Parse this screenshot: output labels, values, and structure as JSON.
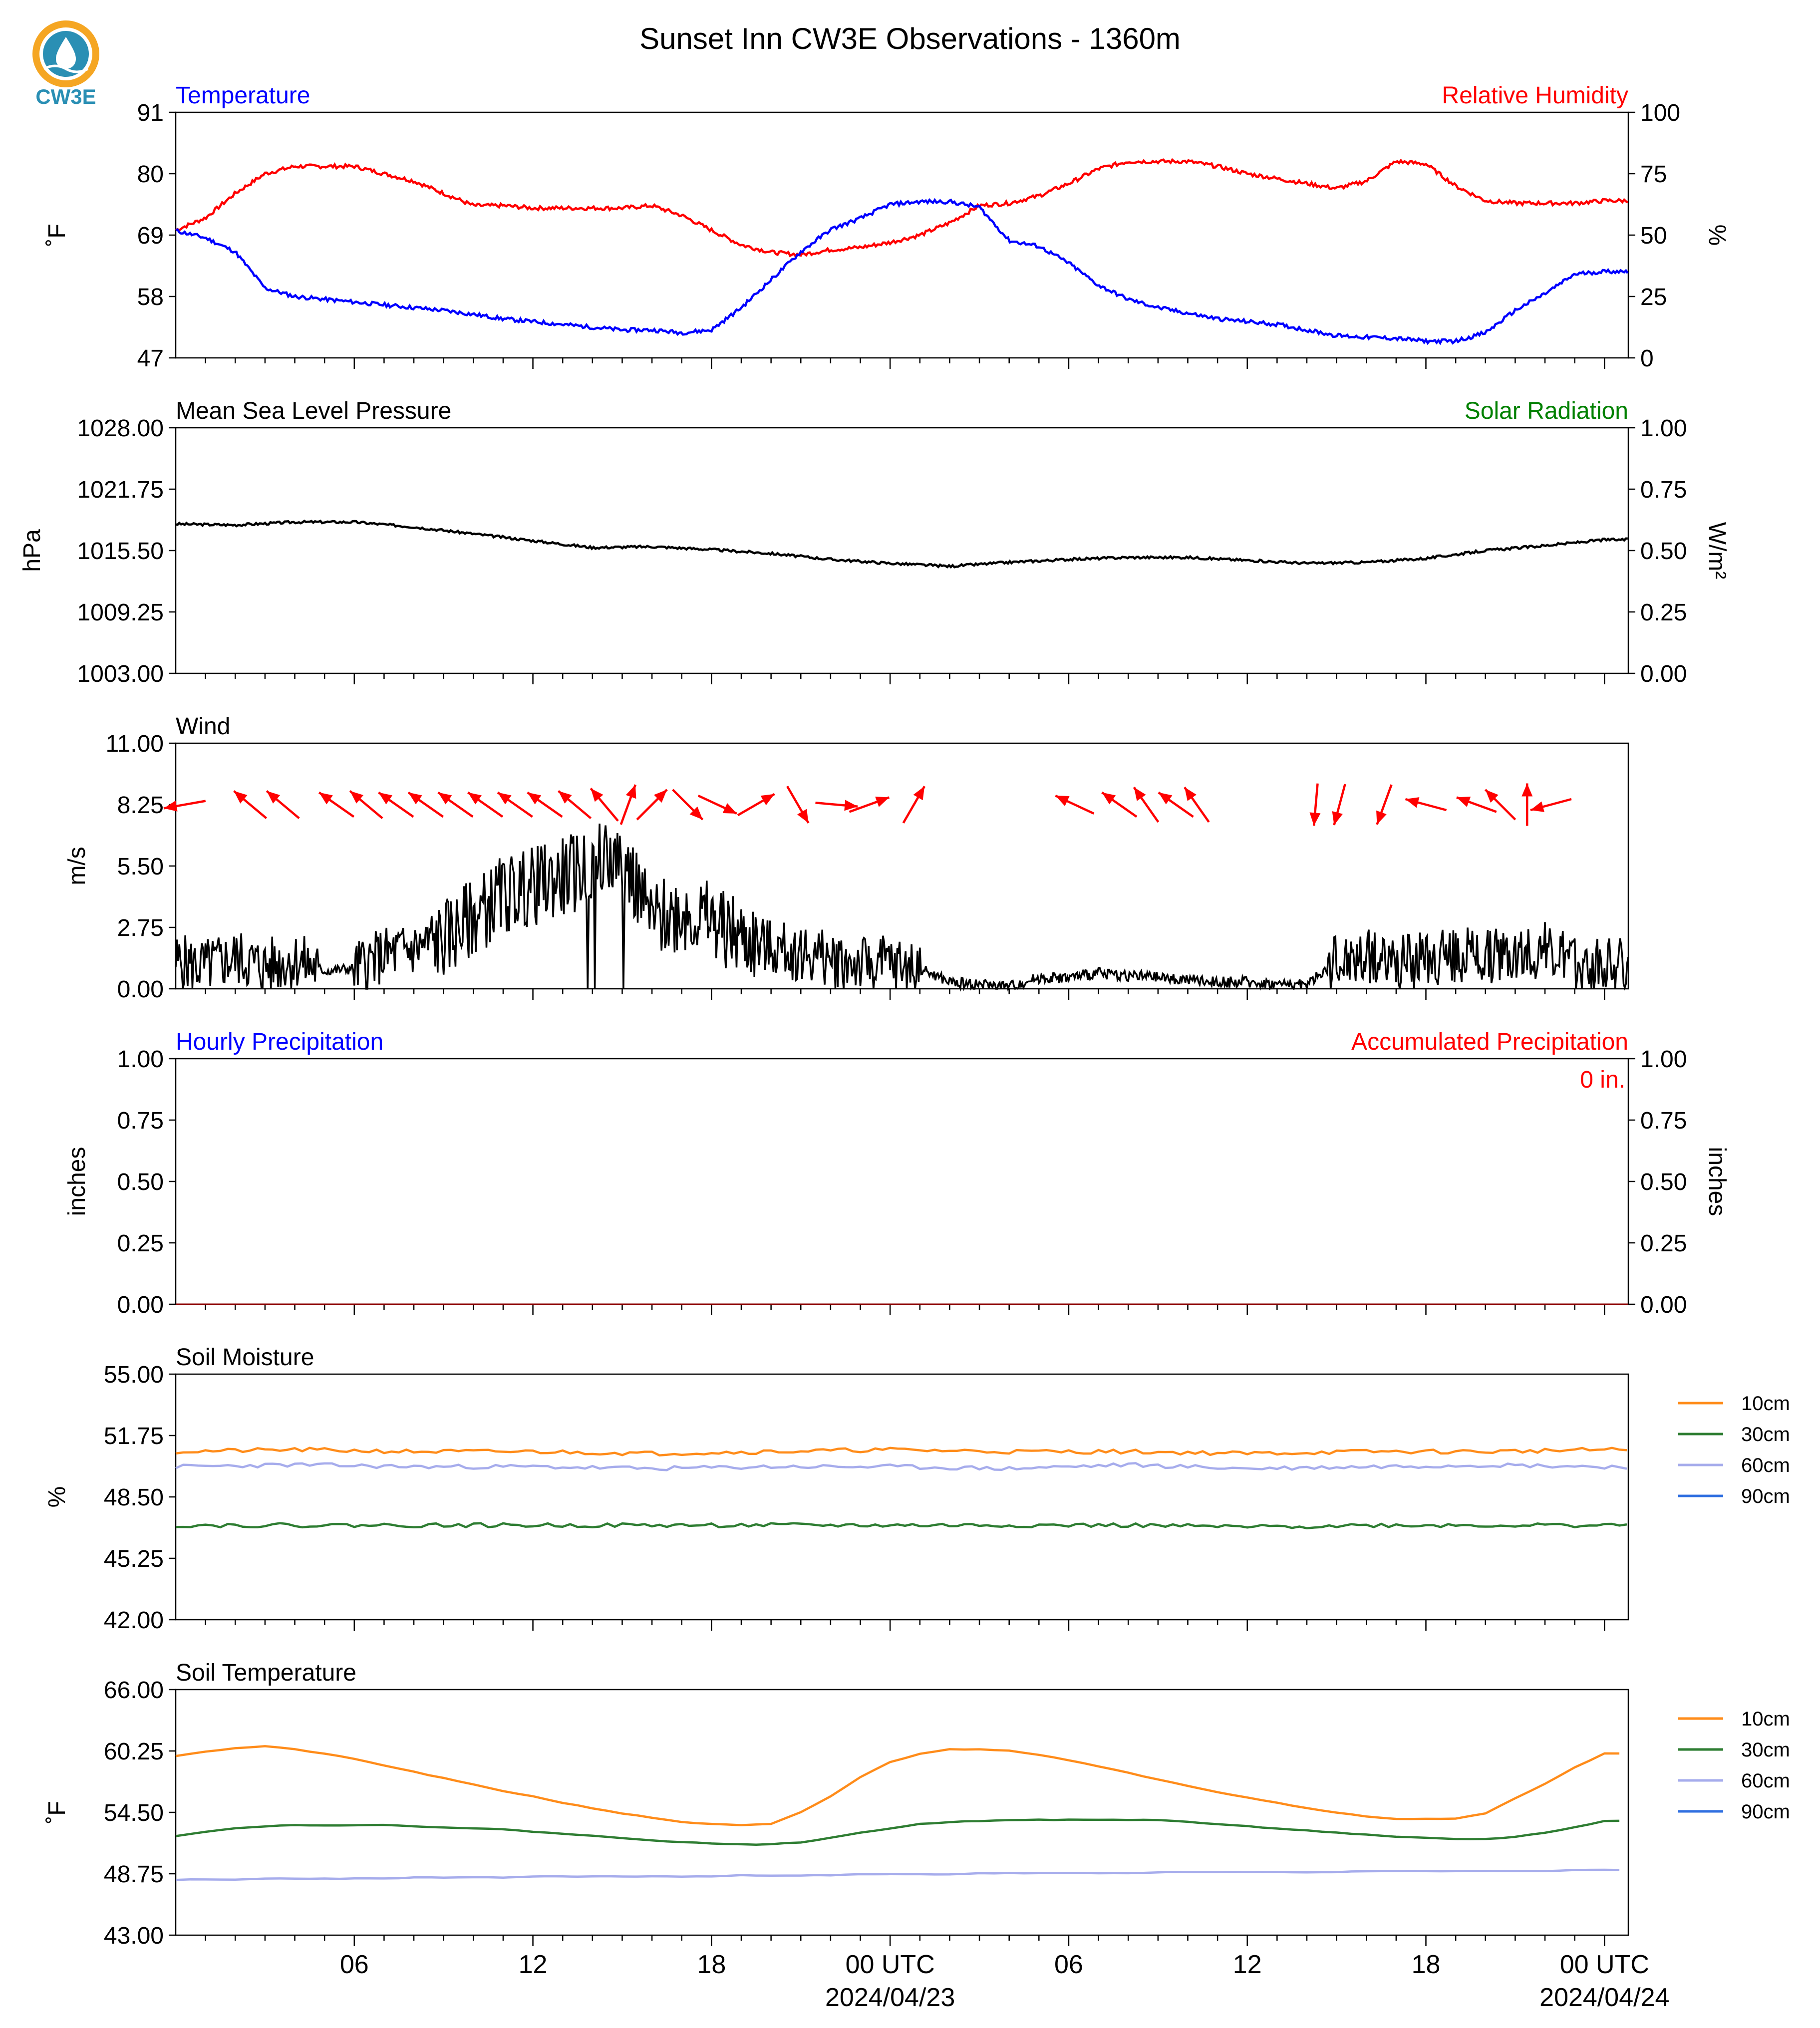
{
  "page": {
    "title": "Sunset Inn CW3E Observations - 1360m",
    "logo_text": "CW3E"
  },
  "colors": {
    "temperature": "#0000ff",
    "humidity": "#ff0000",
    "solar": "#008000",
    "soil_10cm": "#ff8c1a",
    "soil_30cm": "#2e7d32",
    "soil_60cm": "#a6acec",
    "soil_90cm": "#2f6fe0",
    "logo_orange": "#f5a623",
    "logo_teal": "#2a8fb4"
  },
  "x_axis": {
    "tick_labels": [
      "06",
      "12",
      "18",
      "00 UTC",
      "06",
      "12",
      "18",
      "00 UTC"
    ],
    "date_labels": [
      "2024/04/23",
      "2024/04/24"
    ]
  },
  "chart_data": [
    {
      "type": "line",
      "panel": "temperature-humidity",
      "title_left": "Temperature",
      "title_right": "Relative Humidity",
      "ylabel_left": "˚F",
      "ylabel_right": "%",
      "ylim_left": [
        47,
        91
      ],
      "ylim_right": [
        0,
        100
      ],
      "yticks_left": [
        "91",
        "80",
        "69",
        "58",
        "47"
      ],
      "yticks_right": [
        "100",
        "75",
        "50",
        "25",
        "0"
      ],
      "x_hours": [
        0,
        1,
        2,
        3,
        4,
        5,
        6,
        7,
        8,
        9,
        10,
        11,
        12,
        13,
        14,
        15,
        16,
        17,
        18,
        19,
        20,
        21,
        22,
        23,
        24,
        25,
        26,
        27,
        28,
        29,
        30,
        31,
        32,
        33,
        34,
        35,
        36,
        37,
        38,
        39,
        40,
        41,
        42,
        43,
        44,
        45,
        46,
        47,
        48
      ],
      "series": [
        {
          "name": "Temperature",
          "axis": "left",
          "color_key": "temperature",
          "values": [
            69.8,
            68.5,
            66,
            59.5,
            58,
            57.5,
            57,
            56.5,
            56,
            55.5,
            54.8,
            54,
            53.5,
            53,
            52.5,
            52,
            52,
            51.5,
            52,
            56,
            61,
            66,
            70,
            72,
            74.5,
            75,
            75,
            74,
            68,
            67,
            64,
            60,
            57.5,
            56,
            55,
            54,
            53.5,
            53,
            52,
            51,
            50.7,
            50.5,
            50,
            50,
            51.5,
            55.5,
            58.5,
            62,
            62.5
          ]
        },
        {
          "name": "Relative Humidity",
          "axis": "right",
          "color_key": "humidity",
          "values": [
            52,
            57,
            67,
            75,
            78,
            78,
            78,
            75,
            72,
            67,
            62,
            62,
            61,
            61,
            61,
            61,
            62,
            58,
            52,
            46,
            43,
            42,
            44,
            45,
            47,
            50,
            55,
            62,
            63,
            66,
            71,
            77,
            80,
            80,
            80,
            78,
            75,
            73,
            71,
            69,
            72,
            80,
            79,
            70,
            64,
            63,
            63,
            63,
            64
          ]
        }
      ]
    },
    {
      "type": "line",
      "panel": "pressure",
      "title_left": "Mean Sea Level Pressure",
      "title_right": "Solar Radiation",
      "ylabel_left": "hPa",
      "ylabel_right": "W/m²",
      "ylim_left": [
        1003,
        1028
      ],
      "ylim_right": [
        0,
        1
      ],
      "yticks_left": [
        "1028.00",
        "1021.75",
        "1015.50",
        "1009.25",
        "1003.00"
      ],
      "yticks_right": [
        "1.00",
        "0.75",
        "0.50",
        "0.25",
        "0.00"
      ],
      "x_hours": [
        0,
        2,
        4,
        6,
        8,
        10,
        12,
        14,
        16,
        18,
        20,
        22,
        24,
        26,
        28,
        30,
        32,
        34,
        36,
        38,
        40,
        42,
        44,
        46,
        48
      ],
      "series": [
        {
          "name": "Mean Sea Level Pressure",
          "axis": "left",
          "values": [
            1018.2,
            1018.1,
            1018.4,
            1018.4,
            1017.9,
            1017.2,
            1016.5,
            1015.8,
            1015.9,
            1015.6,
            1015.2,
            1014.6,
            1014.2,
            1013.9,
            1014.3,
            1014.6,
            1014.8,
            1014.8,
            1014.5,
            1014.2,
            1014.3,
            1014.7,
            1015.5,
            1016.0,
            1016.6
          ]
        }
      ]
    },
    {
      "type": "line",
      "panel": "wind",
      "title_left": "Wind",
      "ylabel_left": "m/s",
      "ylim_left": [
        0,
        11
      ],
      "yticks_left": [
        "11.00",
        "8.25",
        "5.50",
        "2.75",
        "0.00"
      ],
      "x_hours": [
        0,
        1,
        2,
        3,
        4,
        5,
        6,
        7,
        8,
        9,
        10,
        11,
        12,
        13,
        14,
        15,
        16,
        17,
        18,
        19,
        20,
        21,
        22,
        23,
        24,
        25,
        26,
        27,
        28,
        29,
        30,
        31,
        32,
        33,
        34,
        35,
        36,
        37,
        38,
        39,
        40,
        41,
        42,
        43,
        44,
        45,
        46,
        47,
        48
      ],
      "series": [
        {
          "name": "Wind speed",
          "axis": "left",
          "values": [
            1.2,
            1.0,
            1.4,
            1.0,
            1.3,
            0.8,
            0.9,
            1.5,
            1.8,
            2.2,
            3.2,
            4.2,
            4.6,
            5.0,
            5.5,
            6.0,
            3.0,
            3.5,
            3.0,
            2.3,
            1.8,
            1.6,
            1.3,
            1.1,
            1.1,
            0.9,
            0.3,
            0.2,
            0.1,
            0.5,
            0.5,
            0.7,
            0.6,
            0.5,
            0.4,
            0.3,
            0.3,
            0.2,
            0.2,
            1.2,
            1.5,
            1.3,
            1.2,
            1.6,
            1.5,
            1.6,
            1.8,
            1.0,
            1.2
          ]
        }
      ],
      "arrows": [
        {
          "hour": 0.3,
          "dir_deg": 260
        },
        {
          "hour": 2.5,
          "dir_deg": 310
        },
        {
          "hour": 3.6,
          "dir_deg": 310
        },
        {
          "hour": 5.4,
          "dir_deg": 305
        },
        {
          "hour": 6.4,
          "dir_deg": 310
        },
        {
          "hour": 7.4,
          "dir_deg": 305
        },
        {
          "hour": 8.4,
          "dir_deg": 305
        },
        {
          "hour": 9.4,
          "dir_deg": 305
        },
        {
          "hour": 10.4,
          "dir_deg": 305
        },
        {
          "hour": 11.4,
          "dir_deg": 305
        },
        {
          "hour": 12.4,
          "dir_deg": 305
        },
        {
          "hour": 13.4,
          "dir_deg": 310
        },
        {
          "hour": 14.4,
          "dir_deg": 320
        },
        {
          "hour": 15.2,
          "dir_deg": 20
        },
        {
          "hour": 16.0,
          "dir_deg": 45
        },
        {
          "hour": 17.2,
          "dir_deg": 135
        },
        {
          "hour": 18.2,
          "dir_deg": 115
        },
        {
          "hour": 19.5,
          "dir_deg": 60
        },
        {
          "hour": 20.9,
          "dir_deg": 150
        },
        {
          "hour": 22.2,
          "dir_deg": 95
        },
        {
          "hour": 23.3,
          "dir_deg": 70
        },
        {
          "hour": 24.8,
          "dir_deg": 30
        },
        {
          "hour": 30.2,
          "dir_deg": 295
        },
        {
          "hour": 31.7,
          "dir_deg": 305
        },
        {
          "hour": 32.6,
          "dir_deg": 325
        },
        {
          "hour": 33.6,
          "dir_deg": 305
        },
        {
          "hour": 34.3,
          "dir_deg": 325
        },
        {
          "hour": 38.3,
          "dir_deg": 185
        },
        {
          "hour": 39.1,
          "dir_deg": 195
        },
        {
          "hour": 40.6,
          "dir_deg": 200
        },
        {
          "hour": 42.0,
          "dir_deg": 285
        },
        {
          "hour": 43.7,
          "dir_deg": 290
        },
        {
          "hour": 44.5,
          "dir_deg": 315
        },
        {
          "hour": 45.4,
          "dir_deg": 0
        },
        {
          "hour": 46.2,
          "dir_deg": 255
        }
      ]
    },
    {
      "type": "line",
      "panel": "precipitation",
      "title_left": "Hourly Precipitation",
      "title_right": "Accumulated Precipitation",
      "annotation": "0 in.",
      "ylabel_left": "inches",
      "ylabel_right": "inches",
      "ylim_left": [
        0,
        1
      ],
      "ylim_right": [
        0,
        1
      ],
      "yticks_left": [
        "1.00",
        "0.75",
        "0.50",
        "0.25",
        "0.00"
      ],
      "yticks_right": [
        "1.00",
        "0.75",
        "0.50",
        "0.25",
        "0.00"
      ],
      "x_hours": [
        0,
        48
      ],
      "series": [
        {
          "name": "Accumulated Precipitation",
          "axis": "right",
          "values": [
            0,
            0
          ]
        }
      ]
    },
    {
      "type": "line",
      "panel": "soil-moisture",
      "title_left": "Soil Moisture",
      "ylabel_left": "%",
      "ylim_left": [
        42,
        55
      ],
      "yticks_left": [
        "55.00",
        "51.75",
        "48.50",
        "45.25",
        "42.00"
      ],
      "x_hours": [
        0,
        4,
        8,
        12,
        16,
        20,
        24,
        28,
        32,
        36,
        40,
        44,
        48
      ],
      "series": [
        {
          "name": "10cm",
          "color_key": "soil_10cm",
          "values": [
            50.9,
            51.0,
            50.9,
            50.9,
            50.8,
            50.9,
            51.0,
            50.9,
            50.9,
            50.8,
            50.9,
            50.9,
            51.0
          ]
        },
        {
          "name": "30cm",
          "color_key": "soil_30cm",
          "values": [
            47.0,
            47.0,
            47.0,
            47.0,
            47.0,
            47.0,
            47.0,
            47.0,
            47.0,
            46.9,
            47.0,
            47.0,
            47.0
          ]
        },
        {
          "name": "60cm",
          "color_key": "soil_60cm",
          "values": [
            50.1,
            50.2,
            50.1,
            50.1,
            50.0,
            50.1,
            50.1,
            50.0,
            50.2,
            50.0,
            50.1,
            50.2,
            50.1
          ]
        }
      ],
      "legend": [
        "10cm",
        "30cm",
        "60cm",
        "90cm"
      ]
    },
    {
      "type": "line",
      "panel": "soil-temperature",
      "title_left": "Soil Temperature",
      "ylabel_left": "˚F",
      "ylim_left": [
        43,
        66
      ],
      "yticks_left": [
        "66.00",
        "60.25",
        "54.50",
        "48.75",
        "43.00"
      ],
      "x_hours": [
        0,
        1,
        2,
        3,
        4,
        5,
        6,
        7,
        8,
        9,
        10,
        11,
        12,
        13,
        14,
        15,
        16,
        17,
        18,
        19,
        20,
        21,
        22,
        23,
        24,
        25,
        26,
        27,
        28,
        29,
        30,
        31,
        32,
        33,
        34,
        35,
        36,
        37,
        38,
        39,
        40,
        41,
        42,
        43,
        44,
        45,
        46,
        47,
        48
      ],
      "series": [
        {
          "name": "10cm",
          "color_key": "soil_10cm",
          "values": [
            59.8,
            60.2,
            60.5,
            60.7,
            60.4,
            60.0,
            59.5,
            58.9,
            58.3,
            57.7,
            57.1,
            56.5,
            56.0,
            55.4,
            54.9,
            54.4,
            54.0,
            53.6,
            53.4,
            53.3,
            53.4,
            54.5,
            56.0,
            57.8,
            59.2,
            60.0,
            60.4,
            60.4,
            60.3,
            59.9,
            59.4,
            58.8,
            58.2,
            57.6,
            57.0,
            56.4,
            55.9,
            55.4,
            54.9,
            54.5,
            54.1,
            53.9,
            53.9,
            53.9,
            54.4,
            55.8,
            57.2,
            58.7,
            60.0
          ]
        },
        {
          "name": "30cm",
          "color_key": "soil_30cm",
          "values": [
            52.3,
            52.7,
            53.0,
            53.2,
            53.3,
            53.3,
            53.3,
            53.3,
            53.2,
            53.1,
            53.0,
            52.9,
            52.7,
            52.5,
            52.3,
            52.1,
            51.9,
            51.7,
            51.6,
            51.5,
            51.5,
            51.7,
            52.1,
            52.6,
            53.0,
            53.4,
            53.6,
            53.7,
            53.8,
            53.8,
            53.8,
            53.8,
            53.8,
            53.8,
            53.6,
            53.4,
            53.2,
            53.0,
            52.8,
            52.6,
            52.4,
            52.2,
            52.1,
            52.0,
            52.0,
            52.2,
            52.6,
            53.1,
            53.7
          ]
        },
        {
          "name": "60cm",
          "color_key": "soil_60cm",
          "values": [
            48.2,
            48.2,
            48.2,
            48.3,
            48.3,
            48.3,
            48.3,
            48.3,
            48.4,
            48.4,
            48.4,
            48.4,
            48.5,
            48.5,
            48.5,
            48.5,
            48.5,
            48.5,
            48.5,
            48.6,
            48.6,
            48.6,
            48.6,
            48.7,
            48.7,
            48.7,
            48.7,
            48.8,
            48.8,
            48.8,
            48.8,
            48.8,
            48.8,
            48.9,
            48.9,
            48.9,
            48.9,
            48.9,
            48.9,
            48.9,
            49.0,
            49.0,
            49.0,
            49.0,
            49.0,
            49.0,
            49.0,
            49.1,
            49.1
          ]
        }
      ],
      "legend": [
        "10cm",
        "30cm",
        "60cm",
        "90cm"
      ]
    }
  ]
}
